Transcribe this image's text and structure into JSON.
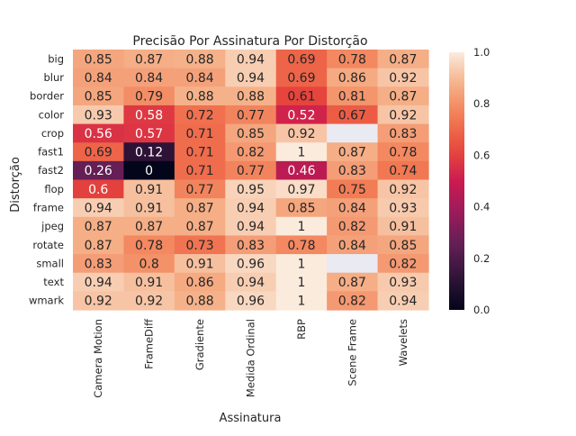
{
  "chart_data": {
    "type": "heatmap",
    "title": "Precisão Por Assinatura Por Distorção",
    "xlabel": "Assinatura",
    "ylabel": "Distorção",
    "columns": [
      "Camera Motion",
      "FrameDiff",
      "Gradiente",
      "Medida Ordinal",
      "RBP",
      "Scene Frame",
      "Wavelets"
    ],
    "rows": [
      "big",
      "blur",
      "border",
      "color",
      "crop",
      "fast1",
      "fast2",
      "flop",
      "frame",
      "jpeg",
      "rotate",
      "small",
      "text",
      "wmark"
    ],
    "values": [
      [
        0.85,
        0.87,
        0.88,
        0.94,
        0.69,
        0.78,
        0.87
      ],
      [
        0.84,
        0.84,
        0.84,
        0.94,
        0.69,
        0.86,
        0.92
      ],
      [
        0.85,
        0.79,
        0.88,
        0.88,
        0.61,
        0.81,
        0.87
      ],
      [
        0.93,
        0.58,
        0.72,
        0.77,
        0.52,
        0.67,
        0.92
      ],
      [
        0.56,
        0.57,
        0.71,
        0.85,
        0.92,
        null,
        0.83
      ],
      [
        0.69,
        0.12,
        0.71,
        0.82,
        1,
        0.87,
        0.78
      ],
      [
        0.26,
        0,
        0.71,
        0.77,
        0.46,
        0.83,
        0.74
      ],
      [
        0.6,
        0.91,
        0.77,
        0.95,
        0.97,
        0.75,
        0.92
      ],
      [
        0.94,
        0.91,
        0.87,
        0.94,
        0.85,
        0.84,
        0.93
      ],
      [
        0.87,
        0.87,
        0.87,
        0.94,
        1,
        0.82,
        0.91
      ],
      [
        0.87,
        0.78,
        0.73,
        0.83,
        0.78,
        0.84,
        0.85
      ],
      [
        0.83,
        0.8,
        0.91,
        0.96,
        1,
        null,
        0.82
      ],
      [
        0.94,
        0.91,
        0.86,
        0.94,
        1,
        0.87,
        0.93
      ],
      [
        0.92,
        0.92,
        0.88,
        0.96,
        1,
        0.82,
        0.94
      ]
    ],
    "vmin": 0,
    "vmax": 1,
    "colorbar_ticks": [
      "0.0",
      "0.2",
      "0.4",
      "0.6",
      "0.8",
      "1.0"
    ],
    "colormap": "rocket",
    "missing_color": "#eaeaf2",
    "annotations": true
  }
}
